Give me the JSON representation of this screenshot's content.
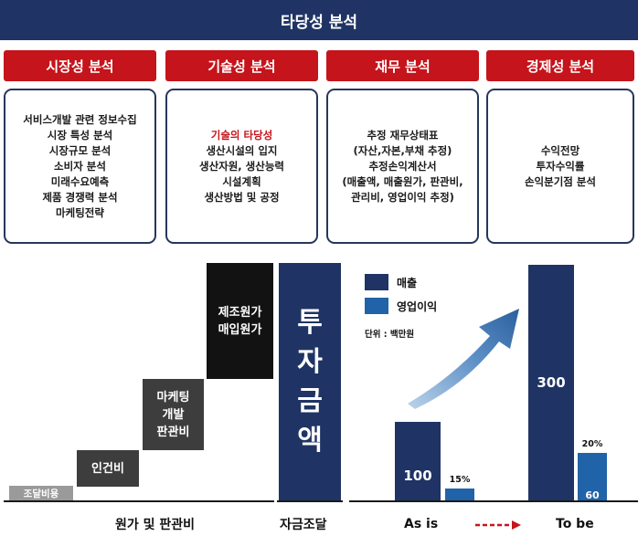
{
  "title": "타당성 분석",
  "categories": [
    {
      "label": "시장성 분석",
      "items": [
        "서비스개발 관련 정보수집",
        "시장 특성 분석",
        "시장규모 분석",
        "소비자 분석",
        "미래수요예측",
        "제품 경쟁력 분석",
        "마케팅전략"
      ]
    },
    {
      "label": "기술성 분석",
      "highlight": "기술의 타당성",
      "items": [
        "생산시설의 입지",
        "생산자원, 생산능력",
        "시설계획",
        "생산방법 및 공정"
      ]
    },
    {
      "label": "재무 분석",
      "items": [
        "추정 재무상태표",
        "(자산,자본,부채 추정)",
        "추정손익계산서",
        "(매출액, 매출원가, 판관비,",
        "관리비, 영업이익 추정)"
      ]
    },
    {
      "label": "경제성 분석",
      "items": [
        "수익전망",
        "투자수익률",
        "손익분기점 분석"
      ]
    }
  ],
  "funding": {
    "steps": [
      {
        "label": "조달비용"
      },
      {
        "label": "인건비"
      },
      {
        "lines": [
          "마케팅",
          "개발",
          "판관비"
        ]
      },
      {
        "lines": [
          "제조원가",
          "매입원가"
        ]
      }
    ],
    "invest_chars": [
      "투",
      "자",
      "금",
      "액"
    ],
    "cost_label": "원가 및 판관비",
    "funding_label": "자금조달"
  },
  "chart_data": {
    "type": "bar",
    "categories": [
      "As is",
      "To be"
    ],
    "series": [
      {
        "name": "매출",
        "values": [
          100,
          300
        ],
        "color": "#1f3464"
      },
      {
        "name": "영업이익",
        "values": [
          15,
          60
        ],
        "color": "#2163a8"
      }
    ],
    "bar_labels": {
      "sales": [
        "100",
        "300"
      ],
      "profit": [
        "15",
        "60"
      ],
      "profit_pct": [
        "15%",
        "20%"
      ]
    },
    "unit": "단위 : 백만원",
    "arrow_color": "#c5141b"
  }
}
